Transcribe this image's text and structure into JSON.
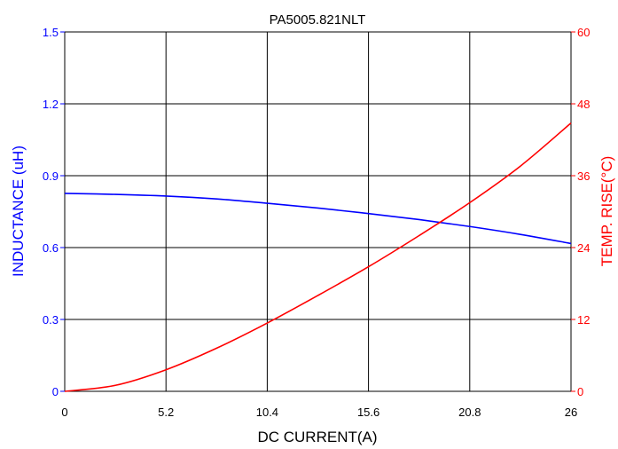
{
  "chart_data": {
    "type": "line",
    "title": "PA5005.821NLT",
    "xlabel": "DC CURRENT(A)",
    "ylabel_left": "INDUCTANCE (uH)",
    "ylabel_right": "TEMP. RISE(°C)",
    "x_ticks": [
      "0",
      "5.2",
      "10.4",
      "15.6",
      "20.8",
      "26"
    ],
    "y_left_ticks": [
      "0",
      "0.3",
      "0.6",
      "0.9",
      "1.2",
      "1.5"
    ],
    "y_right_ticks": [
      "0",
      "12",
      "24",
      "36",
      "48",
      "60"
    ],
    "xlim": [
      0,
      26
    ],
    "ylim_left": [
      0,
      1.5
    ],
    "ylim_right": [
      0,
      60
    ],
    "grid": true,
    "colors": {
      "left_axis": "#0000ff",
      "right_axis": "#ff0000",
      "grid": "#000000"
    },
    "series": [
      {
        "axis": "left",
        "color": "#0000ff",
        "x": [
          0,
          2.6,
          5.2,
          7.8,
          10.4,
          13,
          15.6,
          18.2,
          20.8,
          23.4,
          26
        ],
        "values": [
          0.826,
          0.822,
          0.815,
          0.803,
          0.785,
          0.765,
          0.742,
          0.717,
          0.688,
          0.655,
          0.617
        ]
      },
      {
        "axis": "right",
        "color": "#ff0000",
        "x": [
          0,
          2.6,
          5.2,
          7.8,
          10.4,
          13,
          15.6,
          18.2,
          20.8,
          23.4,
          26
        ],
        "values": [
          0,
          1.0,
          3.6,
          7.2,
          11.4,
          16.0,
          20.8,
          26.0,
          31.5,
          37.6,
          44.8
        ]
      }
    ]
  }
}
